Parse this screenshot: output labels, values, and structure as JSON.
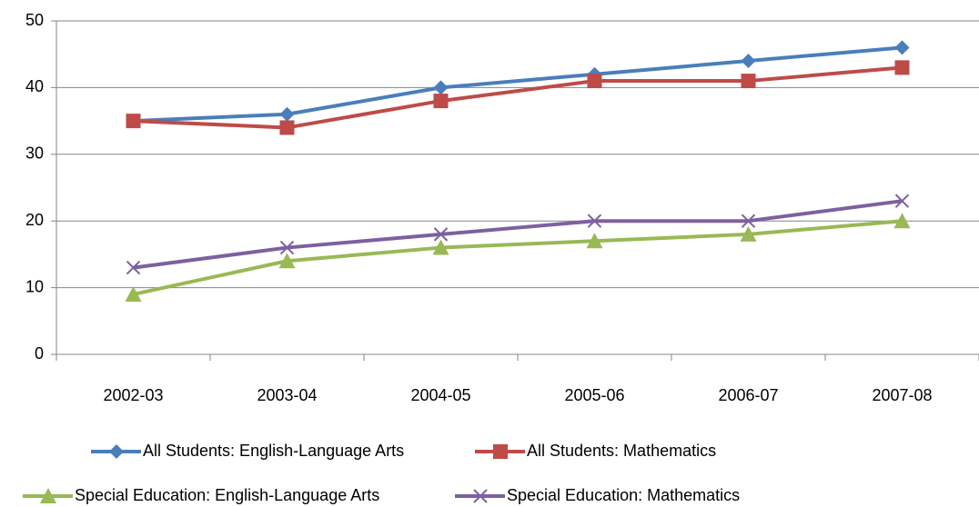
{
  "chart_data": {
    "type": "line",
    "categories": [
      "2002-03",
      "2003-04",
      "2004-05",
      "2005-06",
      "2006-07",
      "2007-08"
    ],
    "series": [
      {
        "name": "All Students: English-Language Arts",
        "color": "#4a7ebb",
        "marker": "diamond",
        "values": [
          35,
          36,
          40,
          42,
          44,
          46
        ]
      },
      {
        "name": "All Students: Mathematics",
        "color": "#be4b48",
        "marker": "square",
        "values": [
          35,
          34,
          38,
          41,
          41,
          43
        ]
      },
      {
        "name": "Special Education: English-Language Arts",
        "color": "#98b954",
        "marker": "triangle",
        "values": [
          9,
          14,
          16,
          17,
          18,
          20
        ]
      },
      {
        "name": "Special Education: Mathematics",
        "color": "#7d60a0",
        "marker": "x",
        "values": [
          13,
          16,
          18,
          20,
          20,
          23
        ]
      }
    ],
    "ylim": [
      0,
      50
    ],
    "yticks": [
      0,
      10,
      20,
      30,
      40,
      50
    ],
    "grid": true,
    "legend": "bottom"
  }
}
